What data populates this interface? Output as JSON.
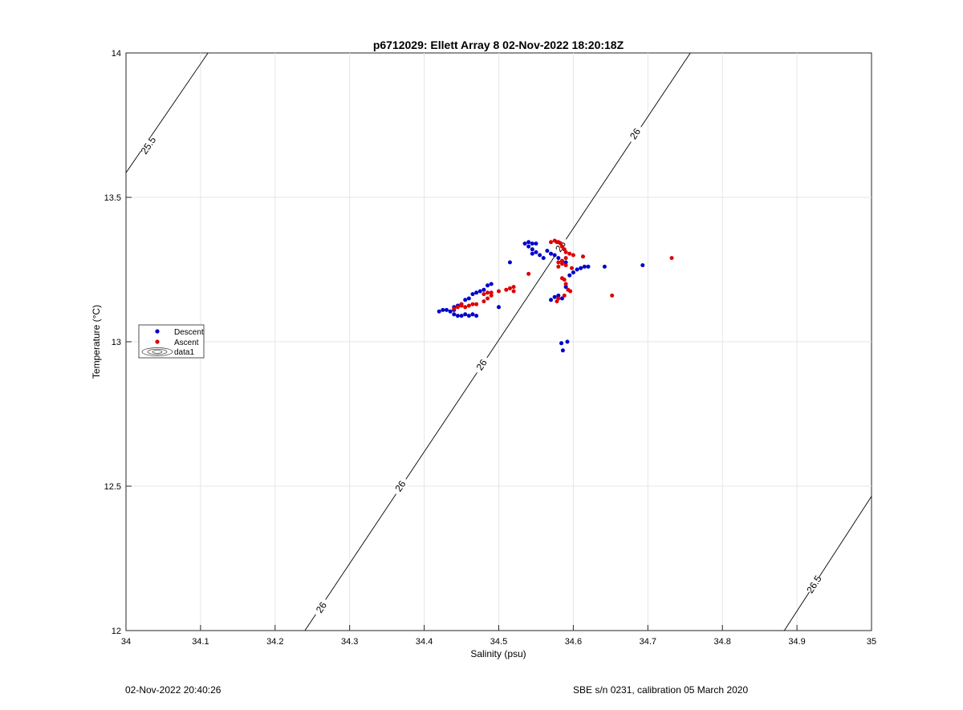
{
  "footer": {
    "left": "02-Nov-2022 20:40:26",
    "right": "SBE s/n 0231, calibration 05 March 2020"
  },
  "chart_data": {
    "type": "scatter",
    "title": "p6712029: Ellett Array 8 02-Nov-2022 18:20:18Z",
    "xlabel": "Salinity (psu)",
    "ylabel": "Temperature (°C)",
    "xlim": [
      34,
      35
    ],
    "ylim": [
      12,
      14
    ],
    "grid": true,
    "legend_position": "left",
    "xticks": [
      "34",
      "34.1",
      "34.2",
      "34.3",
      "34.4",
      "34.5",
      "34.6",
      "34.7",
      "34.8",
      "34.9",
      "35"
    ],
    "yticks": [
      "12",
      "12.5",
      "13",
      "13.5",
      "14"
    ],
    "series": [
      {
        "name": "Descent",
        "color": "#0000cc",
        "marker": "dot",
        "points": [
          [
            34.42,
            13.105
          ],
          [
            34.425,
            13.11
          ],
          [
            34.43,
            13.11
          ],
          [
            34.435,
            13.105
          ],
          [
            34.44,
            13.11
          ],
          [
            34.44,
            13.095
          ],
          [
            34.445,
            13.09
          ],
          [
            34.45,
            13.09
          ],
          [
            34.455,
            13.095
          ],
          [
            34.46,
            13.09
          ],
          [
            34.465,
            13.095
          ],
          [
            34.47,
            13.09
          ],
          [
            34.44,
            13.12
          ],
          [
            34.445,
            13.125
          ],
          [
            34.45,
            13.13
          ],
          [
            34.455,
            13.145
          ],
          [
            34.46,
            13.15
          ],
          [
            34.465,
            13.165
          ],
          [
            34.47,
            13.17
          ],
          [
            34.475,
            13.175
          ],
          [
            34.48,
            13.18
          ],
          [
            34.485,
            13.195
          ],
          [
            34.49,
            13.2
          ],
          [
            34.5,
            13.12
          ],
          [
            34.515,
            13.275
          ],
          [
            34.535,
            13.34
          ],
          [
            34.54,
            13.345
          ],
          [
            34.545,
            13.34
          ],
          [
            34.55,
            13.34
          ],
          [
            34.54,
            13.33
          ],
          [
            34.545,
            13.32
          ],
          [
            34.55,
            13.31
          ],
          [
            34.555,
            13.3
          ],
          [
            34.56,
            13.29
          ],
          [
            34.545,
            13.305
          ],
          [
            34.565,
            13.315
          ],
          [
            34.57,
            13.305
          ],
          [
            34.575,
            13.3
          ],
          [
            34.58,
            13.29
          ],
          [
            34.585,
            13.28
          ],
          [
            34.59,
            13.275
          ],
          [
            34.57,
            13.145
          ],
          [
            34.575,
            13.155
          ],
          [
            34.58,
            13.16
          ],
          [
            34.585,
            13.15
          ],
          [
            34.59,
            13.19
          ],
          [
            34.595,
            13.23
          ],
          [
            34.6,
            13.24
          ],
          [
            34.605,
            13.25
          ],
          [
            34.61,
            13.255
          ],
          [
            34.615,
            13.26
          ],
          [
            34.62,
            13.26
          ],
          [
            34.642,
            13.26
          ],
          [
            34.693,
            13.265
          ],
          [
            34.584,
            12.995
          ],
          [
            34.592,
            13.0
          ],
          [
            34.586,
            12.97
          ]
        ]
      },
      {
        "name": "Ascent",
        "color": "#dd0000",
        "marker": "dot",
        "points": [
          [
            34.445,
            13.12
          ],
          [
            34.45,
            13.125
          ],
          [
            34.455,
            13.12
          ],
          [
            34.46,
            13.125
          ],
          [
            34.465,
            13.13
          ],
          [
            34.47,
            13.13
          ],
          [
            34.45,
            13.13
          ],
          [
            34.44,
            13.115
          ],
          [
            34.48,
            13.14
          ],
          [
            34.485,
            13.15
          ],
          [
            34.49,
            13.16
          ],
          [
            34.48,
            13.165
          ],
          [
            34.485,
            13.17
          ],
          [
            34.49,
            13.17
          ],
          [
            34.5,
            13.175
          ],
          [
            34.51,
            13.18
          ],
          [
            34.515,
            13.185
          ],
          [
            34.52,
            13.19
          ],
          [
            34.52,
            13.175
          ],
          [
            34.54,
            13.235
          ],
          [
            34.57,
            13.345
          ],
          [
            34.575,
            13.35
          ],
          [
            34.578,
            13.345
          ],
          [
            34.58,
            13.345
          ],
          [
            34.583,
            13.34
          ],
          [
            34.585,
            13.33
          ],
          [
            34.588,
            13.32
          ],
          [
            34.59,
            13.31
          ],
          [
            34.595,
            13.305
          ],
          [
            34.6,
            13.3
          ],
          [
            34.58,
            13.275
          ],
          [
            34.585,
            13.27
          ],
          [
            34.59,
            13.265
          ],
          [
            34.585,
            13.28
          ],
          [
            34.59,
            13.29
          ],
          [
            34.58,
            13.26
          ],
          [
            34.585,
            13.22
          ],
          [
            34.588,
            13.215
          ],
          [
            34.59,
            13.2
          ],
          [
            34.593,
            13.18
          ],
          [
            34.596,
            13.175
          ],
          [
            34.58,
            13.15
          ],
          [
            34.578,
            13.14
          ],
          [
            34.598,
            13.255
          ],
          [
            34.613,
            13.295
          ],
          [
            34.652,
            13.16
          ],
          [
            34.732,
            13.29
          ],
          [
            34.588,
            13.16
          ]
        ]
      }
    ],
    "legend_entries": [
      "Descent",
      "Ascent",
      "data1"
    ],
    "contours": [
      {
        "level": "25.5",
        "segment": [
          [
            34.0,
            13.585
          ],
          [
            34.11,
            14.0
          ]
        ],
        "labels": [
          [
            34.03,
            13.68,
            "25.5"
          ]
        ]
      },
      {
        "level": "26",
        "segment": [
          [
            34.24,
            12.0
          ],
          [
            34.757,
            14.0
          ]
        ],
        "labels": [
          [
            34.262,
            12.08,
            "26"
          ],
          [
            34.368,
            12.5,
            "26"
          ],
          [
            34.477,
            12.92,
            "26"
          ],
          [
            34.583,
            13.33,
            "26"
          ],
          [
            34.683,
            13.72,
            "26"
          ]
        ]
      },
      {
        "level": "26.5",
        "segment": [
          [
            34.883,
            12.0
          ],
          [
            35.0,
            12.465
          ]
        ],
        "labels": [
          [
            34.923,
            12.16,
            "26.5"
          ]
        ]
      }
    ]
  }
}
